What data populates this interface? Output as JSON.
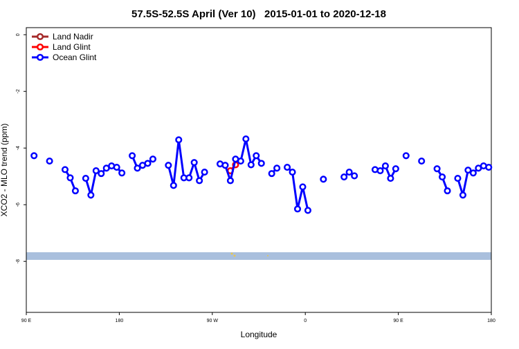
{
  "chart_data": {
    "type": "line",
    "title": "57.5S-52.5S April (Ver 10)   2015-01-01 to 2020-12-18",
    "x_label": "Longitude",
    "y_label": "XCO2 - MLO trend (ppm)",
    "xlim": [
      90,
      540
    ],
    "ylim": [
      -9.8,
      0.25
    ],
    "xticks": [
      {
        "value": 90,
        "label": "90 E"
      },
      {
        "value": 180,
        "label": "180"
      },
      {
        "value": 270,
        "label": "90 W"
      },
      {
        "value": 360,
        "label": "0"
      },
      {
        "value": 450,
        "label": "90 E"
      },
      {
        "value": 540,
        "label": "180"
      }
    ],
    "yticks": [
      0,
      -2,
      -4,
      -6,
      -8
    ],
    "legend": "top-left",
    "series": [
      {
        "name": "Land Nadir",
        "color": "#a52a2a",
        "x": [],
        "values": []
      },
      {
        "name": "Land Glint",
        "color": "#ff0000",
        "x": [
          287.5,
          292.5
        ],
        "values": [
          -4.8,
          -4.59
        ]
      },
      {
        "name": "Ocean Glint",
        "color": "#0000ff",
        "x": [
          97.5,
          102.5,
          112.5,
          117.5,
          127.5,
          132.5,
          137.5,
          142.5,
          147.5,
          152.5,
          157.5,
          162.5,
          167.5,
          172.5,
          177.5,
          182.5,
          187.5,
          192.5,
          197.5,
          202.5,
          207.5,
          212.5,
          217.5,
          227.5,
          232.5,
          237.5,
          242.5,
          247.5,
          252.5,
          257.5,
          262.5,
          267.5,
          277.5,
          282.5,
          287.5,
          292.5,
          297.5,
          302.5,
          307.5,
          312.5,
          317.5,
          322.5,
          327.5,
          332.5,
          337.5,
          342.5,
          347.5,
          352.5,
          357.5,
          362.5,
          367.5,
          377.5,
          382.5,
          397.5,
          402.5,
          407.5,
          412.5,
          427.5,
          432.5,
          437.5,
          442.5,
          447.5,
          452.5,
          457.5,
          462.5,
          472.5,
          477.5,
          487.5,
          492.5,
          497.5,
          502.5,
          507.5,
          512.5,
          517.5,
          522.5,
          527.5,
          532.5,
          537.5
        ],
        "values": [
          -4.27,
          null,
          -4.46,
          null,
          -4.76,
          -5.05,
          -5.51,
          null,
          -5.07,
          -5.66,
          -4.8,
          -4.9,
          -4.71,
          -4.63,
          -4.68,
          -4.88,
          null,
          -4.27,
          -4.71,
          -4.61,
          -4.54,
          -4.39,
          null,
          -4.61,
          -5.32,
          -3.71,
          -5.05,
          -5.05,
          -4.51,
          -5.15,
          -4.85,
          null,
          -4.56,
          -4.61,
          -5.15,
          -4.39,
          -4.46,
          -3.68,
          -4.59,
          -4.27,
          -4.54,
          null,
          -4.9,
          -4.71,
          null,
          -4.68,
          -4.85,
          -6.15,
          -5.37,
          -6.2,
          null,
          -5.1,
          null,
          -5.02,
          -4.85,
          -4.98,
          null,
          -4.76,
          -4.8,
          -4.63,
          -5.07,
          -4.73,
          null,
          -4.27,
          null,
          -4.46,
          null,
          -4.73,
          -5.02,
          -5.51,
          null,
          -5.07,
          -5.66,
          -4.78,
          -4.88,
          -4.71,
          -4.63,
          -4.68
        ]
      }
    ]
  }
}
